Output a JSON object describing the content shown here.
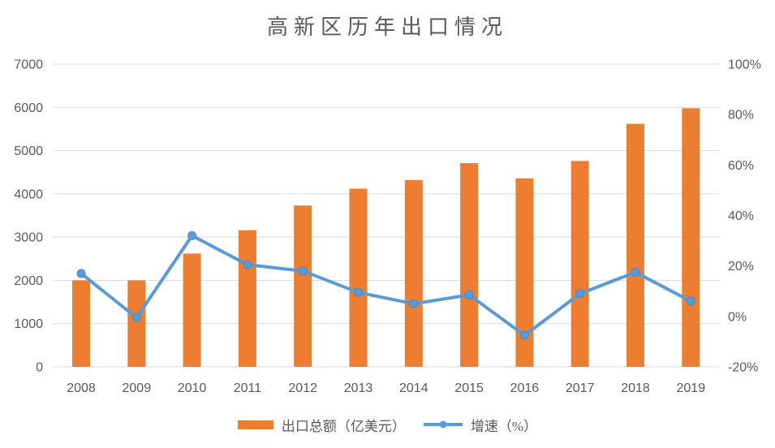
{
  "colors": {
    "bar": "#ED7D31",
    "line": "#5B9BD5",
    "marker_stroke": "#4A86C2",
    "gridline": "#D9D9D9",
    "axis_text": "#595959",
    "title_text": "#595959"
  },
  "chart_data": {
    "type": "combo-bar-line",
    "title": "高新区历年出口情况",
    "categories": [
      "2008",
      "2009",
      "2010",
      "2011",
      "2012",
      "2013",
      "2014",
      "2015",
      "2016",
      "2017",
      "2018",
      "2019"
    ],
    "series": [
      {
        "name": "出口总额（亿美元）",
        "type": "bar",
        "axis": "left",
        "color": "#ED7D31",
        "values": [
          2000,
          2000,
          2620,
          3160,
          3730,
          4120,
          4320,
          4710,
          4360,
          4760,
          5620,
          5980
        ]
      },
      {
        "name": "增速（%）",
        "type": "line",
        "axis": "right",
        "color": "#5B9BD5",
        "values": [
          17,
          -0.5,
          32,
          20.5,
          18,
          9.5,
          5,
          8.5,
          -7.5,
          9,
          17.5,
          6
        ]
      }
    ],
    "left_axis": {
      "min": 0,
      "max": 7000,
      "step": 1000
    },
    "right_axis": {
      "min": -20,
      "max": 100,
      "step": 20,
      "suffix": "%"
    },
    "grid": true,
    "legend_position": "bottom"
  }
}
